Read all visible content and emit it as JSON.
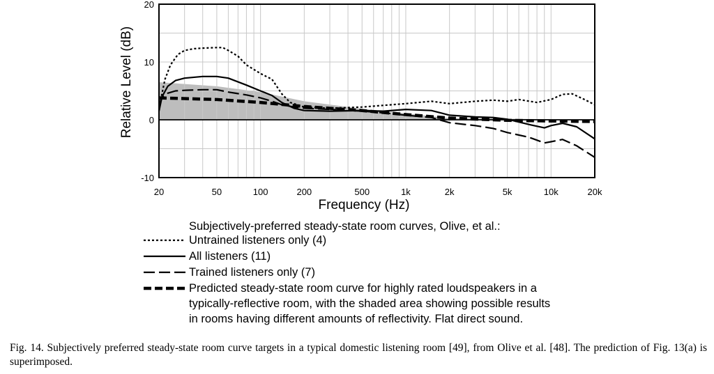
{
  "chart_data": {
    "type": "line",
    "xlabel": "Frequency (Hz)",
    "ylabel": "Relative Level (dB)",
    "x_scale": "log",
    "xlim": [
      20,
      20000
    ],
    "ylim": [
      -10,
      20
    ],
    "grid": true,
    "x_ticks": [
      {
        "value": 20,
        "label": "20"
      },
      {
        "value": 50,
        "label": "50"
      },
      {
        "value": 100,
        "label": "100"
      },
      {
        "value": 200,
        "label": "200"
      },
      {
        "value": 500,
        "label": "500"
      },
      {
        "value": 1000,
        "label": "1k"
      },
      {
        "value": 2000,
        "label": "2k"
      },
      {
        "value": 5000,
        "label": "5k"
      },
      {
        "value": 10000,
        "label": "10k"
      },
      {
        "value": 20000,
        "label": "20k"
      }
    ],
    "y_ticks": [
      {
        "value": 20,
        "label": "20"
      },
      {
        "value": 10,
        "label": "10"
      },
      {
        "value": 0,
        "label": "0"
      },
      {
        "value": -10,
        "label": "-10"
      }
    ],
    "shaded_area": {
      "x": [
        20,
        50,
        100,
        200,
        500,
        1000,
        2000,
        20000
      ],
      "upper": [
        6.5,
        5.8,
        4.8,
        3.2,
        1.9,
        1.1,
        0.3,
        0
      ],
      "lower": [
        0,
        0,
        0,
        0,
        0,
        0,
        0,
        0
      ]
    },
    "legend_header": "Subjectively-preferred steady-state room curves, Olive, et al.:",
    "series": [
      {
        "name": "Untrained listeners only (4)",
        "style": "dotted",
        "x": [
          20,
          22,
          24,
          27,
          30,
          35,
          40,
          50,
          55,
          60,
          70,
          80,
          100,
          120,
          140,
          160,
          200,
          300,
          500,
          700,
          1000,
          1500,
          2000,
          3000,
          4000,
          5000,
          6000,
          8000,
          10000,
          12000,
          14000,
          17000,
          20000
        ],
        "values": [
          2.0,
          7.0,
          9.5,
          11.3,
          12.0,
          12.3,
          12.4,
          12.5,
          12.5,
          12.0,
          11.0,
          9.5,
          8.0,
          7.0,
          4.5,
          3.0,
          2.2,
          2.0,
          2.2,
          2.5,
          2.8,
          3.2,
          2.8,
          3.2,
          3.4,
          3.2,
          3.5,
          3.0,
          3.5,
          4.4,
          4.5,
          3.5,
          2.6
        ]
      },
      {
        "name": "All listeners (11)",
        "style": "solid",
        "x": [
          20,
          21,
          23,
          26,
          30,
          40,
          50,
          60,
          80,
          100,
          120,
          140,
          170,
          200,
          300,
          500,
          700,
          1000,
          1500,
          2000,
          3000,
          4000,
          5000,
          7000,
          9000,
          10000,
          12000,
          15000,
          20000
        ],
        "values": [
          1.5,
          4.0,
          5.8,
          6.8,
          7.2,
          7.5,
          7.5,
          7.2,
          6.0,
          5.0,
          4.2,
          3.0,
          2.0,
          1.6,
          1.5,
          1.6,
          1.5,
          1.8,
          1.6,
          0.8,
          0.5,
          0.4,
          0.1,
          -0.8,
          -1.4,
          -1.0,
          -0.6,
          -1.2,
          -3.3
        ]
      },
      {
        "name": "Trained listeners only (7)",
        "style": "long-dash",
        "x": [
          20,
          21,
          23,
          26,
          30,
          40,
          50,
          60,
          80,
          100,
          120,
          140,
          170,
          200,
          300,
          500,
          700,
          1000,
          1500,
          2000,
          3000,
          4000,
          5000,
          7000,
          9000,
          10000,
          12000,
          15000,
          20000
        ],
        "values": [
          2.5,
          4.0,
          4.6,
          5.0,
          5.1,
          5.2,
          5.2,
          4.8,
          4.3,
          3.8,
          3.2,
          2.6,
          2.2,
          2.0,
          1.8,
          1.5,
          1.2,
          0.8,
          0.4,
          -0.5,
          -1.0,
          -1.5,
          -2.2,
          -3.0,
          -4.0,
          -3.8,
          -3.4,
          -4.5,
          -6.5
        ]
      },
      {
        "name": "Predicted steady-state room curve for highly rated loudspeakers in a typically-reflective room, with the shaded area showing possible results in rooms having different amounts of reflectivity.  Flat direct sound.",
        "style": "heavy-dash",
        "x": [
          20,
          50,
          100,
          200,
          500,
          1000,
          2000,
          5000,
          10000,
          20000
        ],
        "values": [
          3.8,
          3.5,
          3.0,
          2.3,
          1.6,
          0.9,
          0.3,
          -0.1,
          -0.2,
          -0.3
        ]
      }
    ]
  },
  "legend": {
    "header": "Subjectively-preferred steady-state room curves, Olive, et al.:",
    "items": [
      {
        "lines": [
          "Untrained listeners only (4)"
        ]
      },
      {
        "lines": [
          "All listeners (11)"
        ]
      },
      {
        "lines": [
          "Trained listeners only (7)"
        ]
      },
      {
        "lines": [
          "Predicted steady-state room curve for highly rated loudspeakers in a",
          "typically-reflective room, with the shaded area showing possible results",
          "in rooms having different amounts of reflectivity.  Flat direct sound."
        ]
      }
    ]
  },
  "caption": "Fig. 14.  Subjectively preferred steady-state room curve targets in a typical domestic listening room [49], from Olive et al. [48]. The prediction of Fig. 13(a) is superimposed.",
  "colors": {
    "shade": "#bdbdbd",
    "grid": "#c8c8c8",
    "line": "#000000"
  }
}
